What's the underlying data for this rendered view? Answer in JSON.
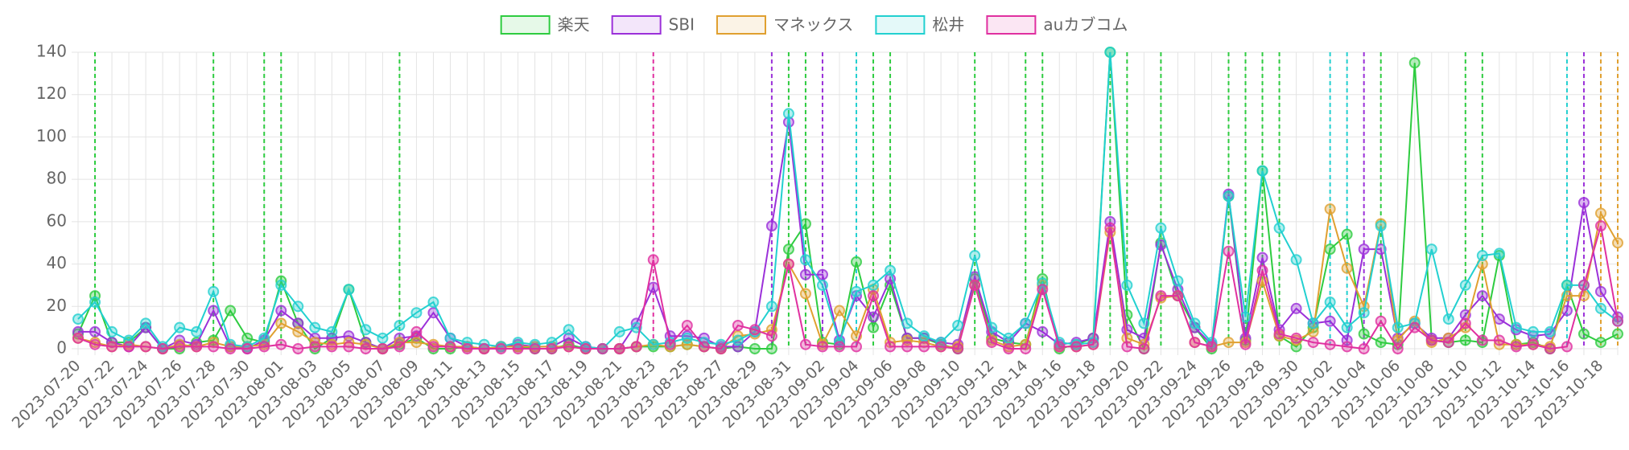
{
  "chart_data": {
    "type": "line",
    "categories": [
      "2023-07-20",
      null,
      "2023-07-22",
      null,
      "2023-07-24",
      null,
      "2023-07-26",
      null,
      "2023-07-28",
      null,
      "2023-07-30",
      null,
      "2023-08-01",
      null,
      "2023-08-03",
      null,
      "2023-08-05",
      null,
      "2023-08-07",
      null,
      "2023-08-09",
      null,
      "2023-08-11",
      null,
      "2023-08-13",
      null,
      "2023-08-15",
      null,
      "2023-08-17",
      null,
      "2023-08-19",
      null,
      "2023-08-21",
      null,
      "2023-08-23",
      null,
      "2023-08-25",
      null,
      "2023-08-27",
      null,
      "2023-08-29",
      null,
      "2023-08-31",
      null,
      "2023-09-02",
      null,
      "2023-09-04",
      null,
      "2023-09-06",
      null,
      "2023-09-08",
      null,
      "2023-09-10",
      null,
      "2023-09-12",
      null,
      "2023-09-14",
      null,
      "2023-09-16",
      null,
      "2023-09-18",
      null,
      "2023-09-20",
      null,
      "2023-09-22",
      null,
      "2023-09-24",
      null,
      "2023-09-26",
      null,
      "2023-09-28",
      null,
      "2023-09-30",
      null,
      "2023-10-02",
      null,
      "2023-10-04",
      null,
      "2023-10-06",
      null,
      "2023-10-08",
      null,
      "2023-10-10",
      null,
      "2023-10-12",
      null,
      "2023-10-14",
      null,
      "2023-10-16",
      null,
      "2023-10-18",
      null
    ],
    "series": [
      {
        "name": "楽天",
        "color": "#2ecc40",
        "events": [
          1,
          8,
          11,
          12,
          19,
          42,
          43,
          47,
          48,
          53,
          56,
          57,
          61,
          62,
          64,
          68,
          69,
          70,
          71,
          77,
          82,
          83
        ],
        "values": [
          7,
          25,
          3,
          3,
          10,
          0,
          0,
          3,
          4,
          18,
          5,
          3,
          32,
          12,
          0,
          5,
          28,
          3,
          0,
          2,
          5,
          0,
          0,
          1,
          0,
          1,
          1,
          0,
          0,
          2,
          0,
          0,
          0,
          1,
          1,
          1,
          2,
          1,
          0,
          1,
          0,
          0,
          47,
          59,
          3,
          2,
          41,
          10,
          30,
          5,
          5,
          2,
          0,
          33,
          5,
          3,
          2,
          33,
          0,
          2,
          5,
          140,
          16,
          0,
          50,
          25,
          10,
          0,
          72,
          4,
          84,
          6,
          1,
          10,
          47,
          54,
          7,
          3,
          2,
          135,
          4,
          3,
          4,
          3,
          44,
          2,
          3,
          0,
          30,
          7,
          3,
          7
        ]
      },
      {
        "name": "SBI",
        "color": "#9b30d9",
        "events": [
          41,
          44,
          76,
          89
        ],
        "values": [
          8,
          8,
          3,
          1,
          10,
          0,
          4,
          2,
          18,
          1,
          0,
          4,
          18,
          12,
          5,
          5,
          6,
          3,
          0,
          5,
          6,
          17,
          5,
          1,
          0,
          1,
          2,
          1,
          1,
          5,
          1,
          0,
          0,
          12,
          29,
          6,
          6,
          5,
          1,
          1,
          8,
          58,
          107,
          35,
          35,
          4,
          25,
          15,
          33,
          5,
          5,
          3,
          2,
          34,
          8,
          3,
          12,
          8,
          2,
          3,
          5,
          60,
          9,
          5,
          49,
          28,
          10,
          2,
          73,
          5,
          43,
          9,
          19,
          12,
          13,
          4,
          47,
          47,
          5,
          12,
          5,
          5,
          16,
          25,
          14,
          9,
          6,
          7,
          18,
          69,
          27,
          15
        ]
      },
      {
        "name": "マネックス",
        "color": "#e0a030",
        "events": [
          90,
          91
        ],
        "values": [
          5,
          3,
          1,
          2,
          1,
          0,
          2,
          1,
          3,
          1,
          1,
          2,
          12,
          8,
          3,
          2,
          3,
          2,
          0,
          3,
          3,
          2,
          1,
          1,
          0,
          1,
          1,
          1,
          1,
          1,
          0,
          0,
          0,
          1,
          2,
          1,
          2,
          1,
          0,
          6,
          7,
          9,
          40,
          26,
          2,
          18,
          6,
          28,
          3,
          4,
          3,
          1,
          1,
          30,
          4,
          1,
          2,
          30,
          1,
          1,
          2,
          55,
          5,
          2,
          24,
          25,
          3,
          1,
          3,
          3,
          32,
          6,
          4,
          8,
          66,
          38,
          20,
          59,
          4,
          13,
          3,
          5,
          10,
          40,
          2,
          2,
          2,
          1,
          25,
          25,
          64,
          50
        ]
      },
      {
        "name": "松井",
        "color": "#22d0d0",
        "events": [
          46,
          74,
          75,
          88
        ],
        "values": [
          14,
          22,
          8,
          4,
          12,
          1,
          10,
          8,
          27,
          2,
          1,
          5,
          30,
          20,
          10,
          8,
          28,
          9,
          5,
          11,
          17,
          22,
          5,
          3,
          2,
          1,
          3,
          2,
          3,
          9,
          1,
          0,
          8,
          10,
          2,
          3,
          5,
          3,
          2,
          4,
          8,
          20,
          111,
          42,
          30,
          3,
          27,
          30,
          37,
          12,
          6,
          3,
          11,
          44,
          10,
          5,
          12,
          31,
          3,
          2,
          3,
          140,
          30,
          12,
          57,
          32,
          12,
          3,
          72,
          15,
          84,
          57,
          42,
          12,
          22,
          10,
          17,
          58,
          10,
          12,
          47,
          14,
          30,
          44,
          45,
          10,
          8,
          8,
          30,
          30,
          19,
          13
        ]
      },
      {
        "name": "auカブコム",
        "color": "#e030a0",
        "events": [
          34
        ],
        "values": [
          5,
          2,
          1,
          1,
          1,
          0,
          1,
          1,
          1,
          0,
          0,
          1,
          2,
          0,
          1,
          1,
          1,
          0,
          0,
          1,
          8,
          1,
          1,
          0,
          0,
          0,
          0,
          0,
          0,
          1,
          0,
          0,
          0,
          1,
          42,
          2,
          11,
          1,
          0,
          11,
          9,
          6,
          40,
          2,
          1,
          1,
          1,
          25,
          1,
          1,
          1,
          1,
          0,
          30,
          3,
          0,
          0,
          28,
          1,
          1,
          2,
          57,
          1,
          0,
          25,
          25,
          3,
          1,
          46,
          2,
          37,
          7,
          5,
          3,
          2,
          1,
          0,
          13,
          0,
          10,
          4,
          3,
          12,
          4,
          4,
          1,
          2,
          0,
          1,
          30,
          58,
          13
        ]
      }
    ],
    "ylim": [
      0,
      140
    ],
    "yticks": [
      0,
      20,
      40,
      60,
      80,
      100,
      120,
      140
    ],
    "grid": true,
    "legend": "top"
  }
}
